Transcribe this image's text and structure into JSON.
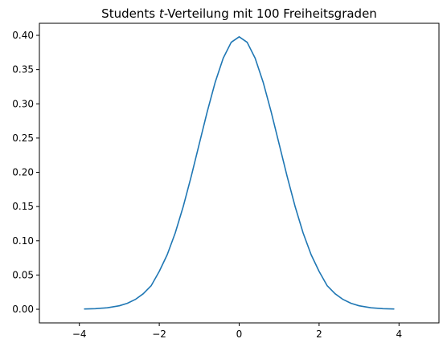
{
  "chart_data": {
    "type": "line",
    "title": {
      "before": "Students ",
      "italic": "t",
      "after": "-Verteilung mit 100 Freiheitsgraden"
    },
    "xlabel": "",
    "ylabel": "",
    "xlim": [
      -5,
      5
    ],
    "ylim": [
      -0.0199,
      0.4176
    ],
    "grid": false,
    "xticks": [
      -4,
      -2,
      0,
      2,
      4
    ],
    "xtick_labels": [
      "−4",
      "−2",
      "0",
      "2",
      "4"
    ],
    "yticks": [
      0.0,
      0.05,
      0.1,
      0.15,
      0.2,
      0.25,
      0.3,
      0.35,
      0.4
    ],
    "ytick_labels": [
      "0.00",
      "0.05",
      "0.10",
      "0.15",
      "0.20",
      "0.25",
      "0.30",
      "0.35",
      "0.40"
    ],
    "series": [
      {
        "color": "#1f77b4",
        "x": [
          -3.87,
          -3.6,
          -3.3,
          -3.0,
          -2.8,
          -2.6,
          -2.4,
          -2.2,
          -2.0,
          -1.8,
          -1.6,
          -1.4,
          -1.2,
          -1.0,
          -0.8,
          -0.6,
          -0.4,
          -0.2,
          0.0,
          0.2,
          0.4,
          0.6,
          0.8,
          1.0,
          1.2,
          1.4,
          1.6,
          1.8,
          2.0,
          2.2,
          2.4,
          2.6,
          2.8,
          3.0,
          3.3,
          3.6,
          3.87
        ],
        "y": [
          0.0004,
          0.0009,
          0.0022,
          0.0051,
          0.0087,
          0.0143,
          0.0227,
          0.0346,
          0.0553,
          0.0798,
          0.1115,
          0.15,
          0.1941,
          0.2413,
          0.2884,
          0.3316,
          0.3666,
          0.3898,
          0.3979,
          0.3898,
          0.3666,
          0.3316,
          0.2884,
          0.2413,
          0.1941,
          0.15,
          0.1115,
          0.0798,
          0.0553,
          0.0346,
          0.0227,
          0.0143,
          0.0087,
          0.0051,
          0.0022,
          0.0009,
          0.0004
        ]
      }
    ]
  }
}
